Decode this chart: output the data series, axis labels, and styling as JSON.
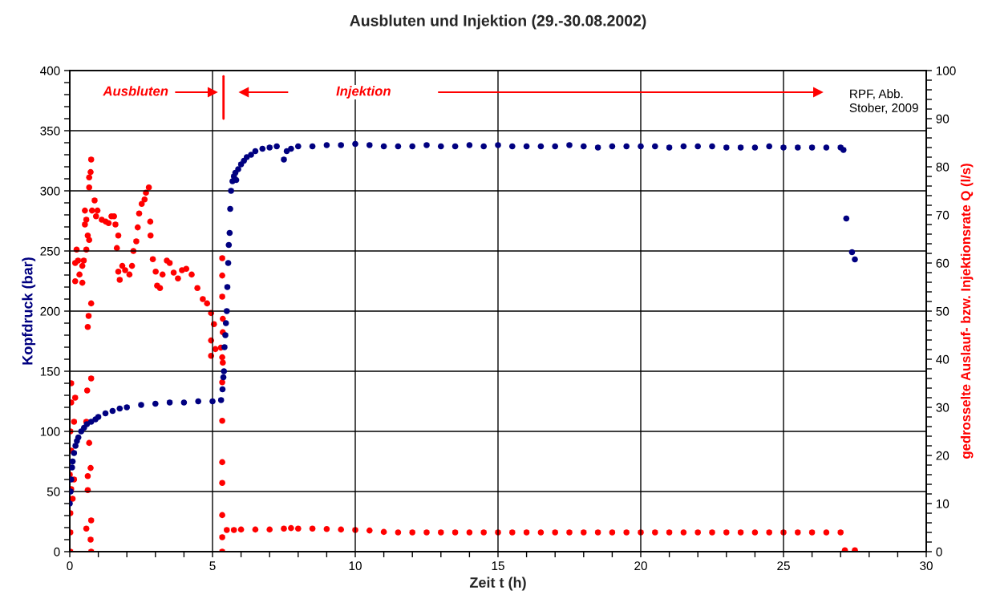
{
  "chart_data": {
    "type": "scatter",
    "title": "Ausbluten und Injektion (29.-30.08.2002)",
    "xlabel": "Zeit t (h)",
    "ylabel": "Kopfdruck (bar)",
    "y2label": "gedrosselte Auslauf- bzw. Injektionsrate Q (l/s)",
    "annotations": [
      "Ausbluten",
      "Injektion",
      "RPF, Abb.\nStober, 2009"
    ],
    "marker": "circle",
    "grid": true,
    "xlim": [
      0,
      30
    ],
    "ylim": [
      0,
      400
    ],
    "y2lim": [
      0,
      100
    ],
    "xticks": [
      0,
      {
        "value": 1,
        "label": null
      },
      {
        "value": 2,
        "label": null
      },
      {
        "value": 3,
        "label": null
      },
      {
        "value": 4,
        "label": null
      },
      5,
      {
        "value": 6,
        "label": null
      },
      {
        "value": 7,
        "label": null
      },
      {
        "value": 8,
        "label": null
      },
      {
        "value": 9,
        "label": null
      },
      10,
      {
        "value": 11,
        "label": null
      },
      {
        "value": 12,
        "label": null
      },
      {
        "value": 13,
        "label": null
      },
      {
        "value": 14,
        "label": null
      },
      15,
      {
        "value": 16,
        "label": null
      },
      {
        "value": 17,
        "label": null
      },
      {
        "value": 18,
        "label": null
      },
      {
        "value": 19,
        "label": null
      },
      20,
      {
        "value": 21,
        "label": null
      },
      {
        "value": 22,
        "label": null
      },
      {
        "value": 23,
        "label": null
      },
      {
        "value": 24,
        "label": null
      },
      25,
      {
        "value": 26,
        "label": null
      },
      {
        "value": 27,
        "label": null
      },
      {
        "value": 28,
        "label": null
      },
      {
        "value": 29,
        "label": null
      },
      30
    ],
    "yticks": [
      0,
      {
        "value": 10,
        "label": null
      },
      {
        "value": 20,
        "label": null
      },
      {
        "value": 30,
        "label": null
      },
      {
        "value": 40,
        "label": null
      },
      50,
      {
        "value": 60,
        "label": null
      },
      {
        "value": 70,
        "label": null
      },
      {
        "value": 80,
        "label": null
      },
      {
        "value": 90,
        "label": null
      },
      100,
      {
        "value": 110,
        "label": null
      },
      {
        "value": 120,
        "label": null
      },
      {
        "value": 130,
        "label": null
      },
      {
        "value": 140,
        "label": null
      },
      150,
      {
        "value": 160,
        "label": null
      },
      {
        "value": 170,
        "label": null
      },
      {
        "value": 180,
        "label": null
      },
      {
        "value": 190,
        "label": null
      },
      200,
      {
        "value": 210,
        "label": null
      },
      {
        "value": 220,
        "label": null
      },
      {
        "value": 230,
        "label": null
      },
      {
        "value": 240,
        "label": null
      },
      250,
      {
        "value": 260,
        "label": null
      },
      {
        "value": 270,
        "label": null
      },
      {
        "value": 280,
        "label": null
      },
      {
        "value": 290,
        "label": null
      },
      300,
      {
        "value": 310,
        "label": null
      },
      {
        "value": 320,
        "label": null
      },
      {
        "value": 330,
        "label": null
      },
      {
        "value": 340,
        "label": null
      },
      350,
      {
        "value": 360,
        "label": null
      },
      {
        "value": 370,
        "label": null
      },
      {
        "value": 380,
        "label": null
      },
      {
        "value": 390,
        "label": null
      },
      400
    ],
    "y2ticks": [
      0,
      {
        "value": 2,
        "label": null
      },
      {
        "value": 4,
        "label": null
      },
      {
        "value": 6,
        "label": null
      },
      {
        "value": 8,
        "label": null
      },
      10,
      {
        "value": 12,
        "label": null
      },
      {
        "value": 14,
        "label": null
      },
      {
        "value": 16,
        "label": null
      },
      {
        "value": 18,
        "label": null
      },
      20,
      {
        "value": 22,
        "label": null
      },
      {
        "value": 24,
        "label": null
      },
      {
        "value": 26,
        "label": null
      },
      {
        "value": 28,
        "label": null
      },
      30,
      {
        "value": 32,
        "label": null
      },
      {
        "value": 34,
        "label": null
      },
      {
        "value": 36,
        "label": null
      },
      {
        "value": 38,
        "label": null
      },
      40,
      {
        "value": 42,
        "label": null
      },
      {
        "value": 44,
        "label": null
      },
      {
        "value": 46,
        "label": null
      },
      {
        "value": 48,
        "label": null
      },
      50,
      {
        "value": 52,
        "label": null
      },
      {
        "value": 54,
        "label": null
      },
      {
        "value": 56,
        "label": null
      },
      {
        "value": 58,
        "label": null
      },
      60,
      {
        "value": 62,
        "label": null
      },
      {
        "value": 64,
        "label": null
      },
      {
        "value": 66,
        "label": null
      },
      {
        "value": 68,
        "label": null
      },
      70,
      {
        "value": 72,
        "label": null
      },
      {
        "value": 74,
        "label": null
      },
      {
        "value": 76,
        "label": null
      },
      {
        "value": 78,
        "label": null
      },
      80,
      {
        "value": 82,
        "label": null
      },
      {
        "value": 84,
        "label": null
      },
      {
        "value": 86,
        "label": null
      },
      {
        "value": 88,
        "label": null
      },
      90,
      {
        "value": 92,
        "label": null
      },
      {
        "value": 94,
        "label": null
      },
      {
        "value": 96,
        "label": null
      },
      {
        "value": 98,
        "label": null
      },
      100
    ],
    "series": [
      {
        "color": "#000080",
        "axis": "y",
        "x": [
          0,
          0.03,
          0.05,
          0.08,
          0.1,
          0.15,
          0.2,
          0.25,
          0.3,
          0.4,
          0.5,
          0.6,
          0.75,
          0.9,
          1,
          1.25,
          1.5,
          1.75,
          2,
          2.5,
          3,
          3.5,
          4,
          4.5,
          5,
          5.3,
          5.35,
          5.38,
          5.4,
          5.42,
          5.45,
          5.47,
          5.5,
          5.52,
          5.55,
          5.57,
          5.6,
          5.62,
          5.65,
          5.7,
          5.75,
          5.8,
          5.83,
          5.9,
          6,
          6.1,
          6.2,
          6.35,
          6.5,
          6.75,
          7,
          7.25,
          7.5,
          7.6,
          7.75,
          8,
          8.5,
          9,
          9.5,
          10,
          10.5,
          11,
          11.5,
          12,
          12.5,
          13,
          13.5,
          14,
          14.5,
          15,
          15.5,
          16,
          16.5,
          17,
          17.5,
          18,
          18.5,
          19,
          19.5,
          20,
          20.5,
          21,
          21.5,
          22,
          22.5,
          23,
          23.5,
          24,
          24.5,
          25,
          25.5,
          26,
          26.5,
          27,
          27.1,
          27.2,
          27.4,
          27.5
        ],
        "values": [
          40,
          50,
          60,
          70,
          75,
          82,
          88,
          92,
          95,
          100,
          103,
          106,
          108,
          110,
          112,
          115,
          117,
          119,
          120,
          122,
          123,
          124,
          124,
          125,
          125,
          126,
          135,
          145,
          150,
          170,
          180,
          190,
          200,
          220,
          240,
          255,
          265,
          285,
          300,
          308,
          312,
          315,
          309,
          318,
          322,
          325,
          328,
          330,
          333,
          335,
          336,
          337,
          326,
          333,
          335,
          337,
          337,
          338,
          338,
          339,
          338,
          337,
          337,
          337,
          338,
          337,
          337,
          338,
          337,
          338,
          337,
          337,
          337,
          337,
          338,
          337,
          336,
          337,
          337,
          337,
          337,
          336,
          337,
          337,
          337,
          336,
          336,
          336,
          337,
          336,
          336,
          336,
          336,
          336,
          334,
          277,
          249,
          243
        ]
      },
      {
        "color": "#ff0000",
        "axis": "y2",
        "x": [
          0.02,
          0.02,
          0.02,
          0.05,
          0,
          0.05,
          0.02,
          0.15,
          0.05,
          0.19,
          0.05,
          0.15,
          0.1,
          0.24,
          0.19,
          0.29,
          0.44,
          0.34,
          0.19,
          0.44,
          0.49,
          0.53,
          0.53,
          0.58,
          0.58,
          0.63,
          0.68,
          0.66,
          0.63,
          0.75,
          0.68,
          0.73,
          0.75,
          0.68,
          0.75,
          0.61,
          0.58,
          0.68,
          0.73,
          0.63,
          0.75,
          0.58,
          0.73,
          0.75,
          0.63,
          0.78,
          0.87,
          0.92,
          0.97,
          1.12,
          1.26,
          1.36,
          1.46,
          1.55,
          1.6,
          1.7,
          1.65,
          1.7,
          1.75,
          1.84,
          1.94,
          2.09,
          2.18,
          2.23,
          2.33,
          2.38,
          2.43,
          2.52,
          2.62,
          2.67,
          2.77,
          2.82,
          2.83,
          2.91,
          3.01,
          3.06,
          3.16,
          3.25,
          3.4,
          3.5,
          3.64,
          3.79,
          3.93,
          4.08,
          4.27,
          4.47,
          4.66,
          4.81,
          4.95,
          5.05,
          4.95,
          4.95,
          5.1,
          5.29,
          5.34,
          5.34,
          5.34,
          5.34,
          5.36,
          5.36,
          5.36,
          5.34,
          5.34,
          5.34,
          5.34,
          5.34,
          5.34,
          5.34,
          5.5,
          5.75,
          6,
          6.5,
          7,
          7.5,
          7.75,
          8,
          8.5,
          9,
          9.5,
          10,
          10.5,
          11,
          11.5,
          12,
          12.5,
          13,
          13.5,
          14,
          14.5,
          15,
          15.5,
          16,
          16.5,
          17,
          17.5,
          18,
          18.5,
          19,
          19.5,
          20,
          20.5,
          21,
          21.5,
          22,
          22.5,
          23,
          23.5,
          24,
          24.5,
          25,
          25.5,
          26,
          26.5,
          27,
          27.15,
          27.5
        ],
        "values": [
          0,
          4,
          8,
          13,
          16,
          21,
          25,
          27,
          31,
          32,
          35,
          15,
          11,
          62.8,
          60,
          60.5,
          59.4,
          57.6,
          56.2,
          55.9,
          60.5,
          68,
          70.9,
          69,
          62.8,
          65.7,
          64.8,
          49,
          46.7,
          51.6,
          77.8,
          78.9,
          81.5,
          75.7,
          36,
          33.5,
          27,
          22.6,
          17.4,
          12.8,
          6.5,
          4.8,
          2.5,
          0,
          15.7,
          70.9,
          73,
          69.7,
          70.9,
          69,
          68.6,
          68.3,
          69.7,
          69.7,
          68,
          65.7,
          63.1,
          58.2,
          56.5,
          59.4,
          58.5,
          57.6,
          59.4,
          62.5,
          64.5,
          67.4,
          70.3,
          72.3,
          73.2,
          74.6,
          75.7,
          68.6,
          65.7,
          60.8,
          58.2,
          55.3,
          54.8,
          57.6,
          60.5,
          60,
          58,
          56.8,
          58.5,
          58.8,
          57.6,
          54.8,
          52.5,
          51.6,
          49.6,
          47.3,
          43.9,
          40.7,
          42.1,
          42.4,
          40.4,
          61,
          57.4,
          53,
          48.4,
          45.6,
          39.3,
          35.2,
          27.2,
          18.6,
          14.3,
          7.6,
          3,
          0,
          4.5,
          4.5,
          4.6,
          4.6,
          4.6,
          4.8,
          4.9,
          4.8,
          4.8,
          4.7,
          4.6,
          4.5,
          4.4,
          4.1,
          4,
          4,
          4,
          4,
          4,
          4,
          4,
          4,
          4,
          4,
          4,
          4,
          4,
          4,
          4,
          4,
          4,
          4,
          4,
          4,
          4,
          4,
          4,
          4,
          4,
          4,
          4,
          4,
          4,
          4,
          4,
          4,
          0.3,
          0.3
        ]
      }
    ]
  }
}
